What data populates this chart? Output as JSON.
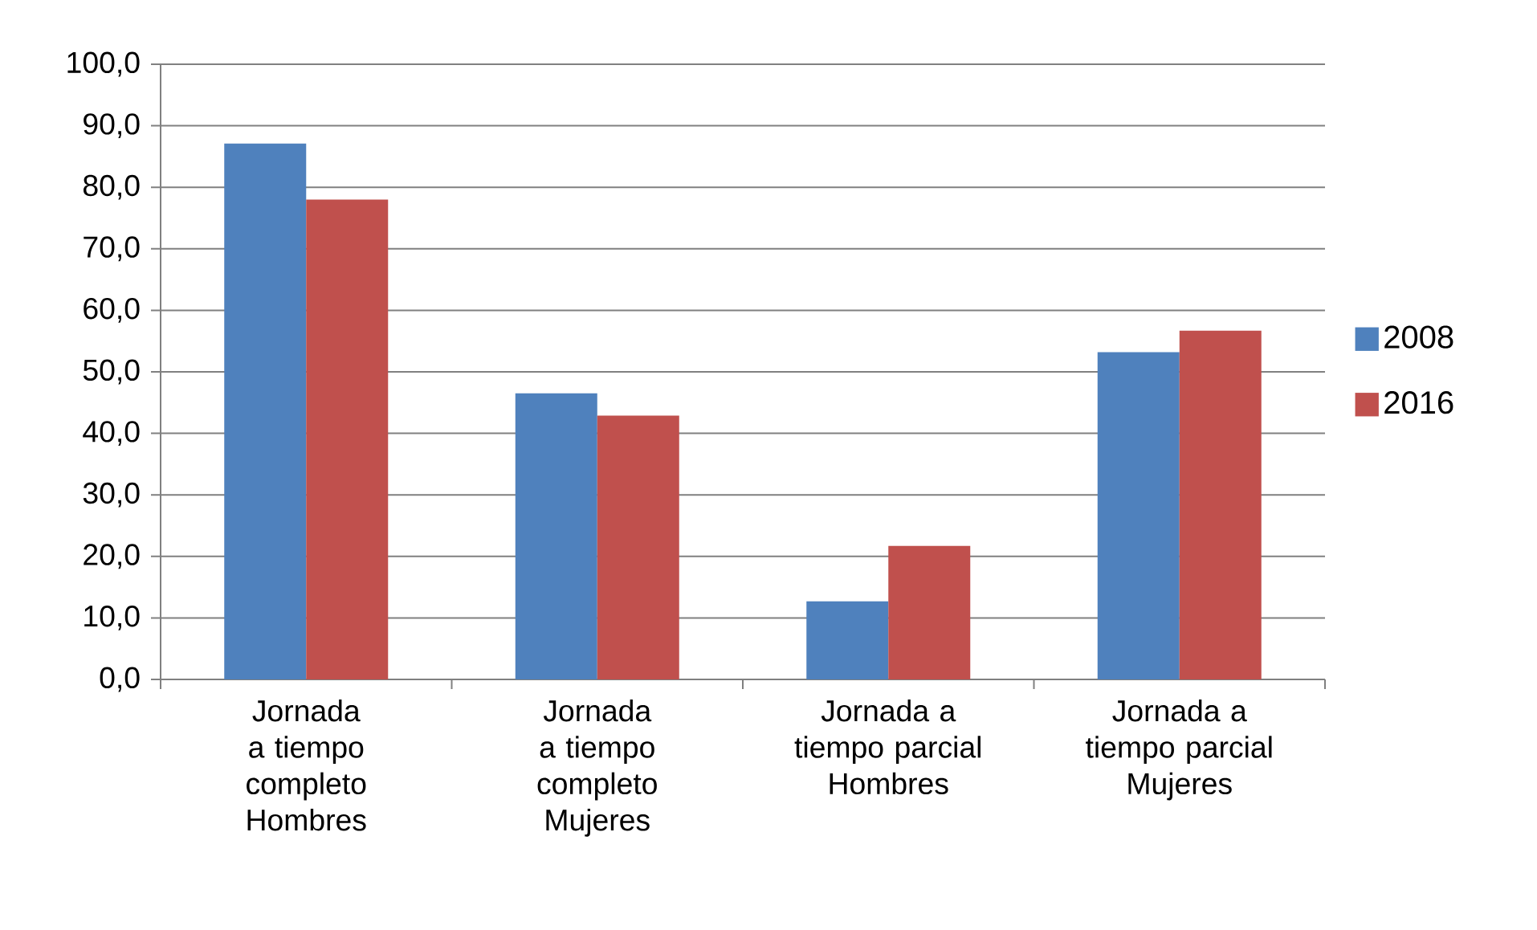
{
  "chart_data": {
    "type": "bar",
    "categories": [
      "Jornada a tiempo completo Hombres",
      "Jornada a tiempo completo Mujeres",
      "Jornada a tiempo parcial Hombres",
      "Jornada a tiempo parcial Mujeres"
    ],
    "series": [
      {
        "name": "2008",
        "color": "#4f81bd",
        "values": [
          87.1,
          46.5,
          12.7,
          53.2
        ]
      },
      {
        "name": "2016",
        "color": "#c0504d",
        "values": [
          78.0,
          42.9,
          21.7,
          56.7
        ]
      }
    ],
    "ylim": [
      0,
      100
    ],
    "yticks": [
      {
        "value": 0,
        "label": "0,0"
      },
      {
        "value": 10,
        "label": "10,0"
      },
      {
        "value": 20,
        "label": "20,0"
      },
      {
        "value": 30,
        "label": "30,0"
      },
      {
        "value": 40,
        "label": "40,0"
      },
      {
        "value": 50,
        "label": "50,0"
      },
      {
        "value": 60,
        "label": "60,0"
      },
      {
        "value": 70,
        "label": "70,0"
      },
      {
        "value": 80,
        "label": "80,0"
      },
      {
        "value": 90,
        "label": "90,0"
      },
      {
        "value": 100,
        "label": "100,0"
      }
    ],
    "grid": "y",
    "legend": "right"
  }
}
